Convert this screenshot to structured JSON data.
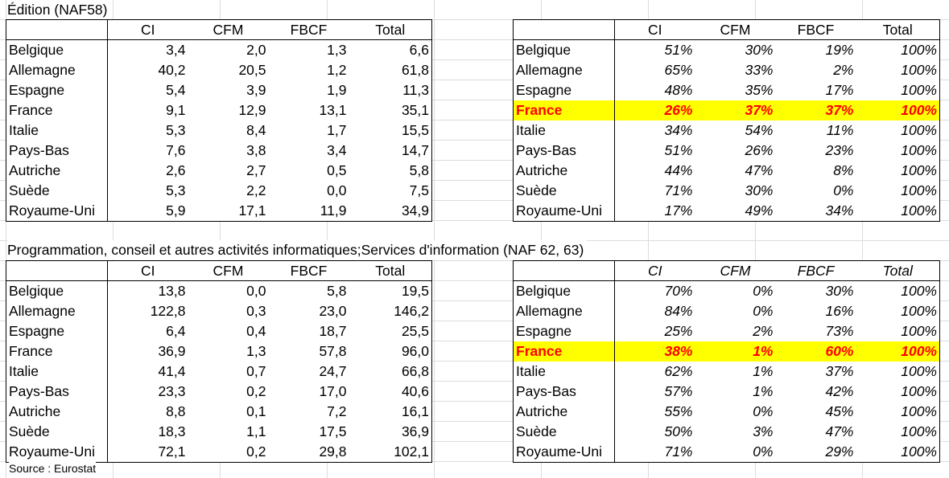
{
  "headers": [
    "CI",
    "CFM",
    "FBCF",
    "Total"
  ],
  "highlight_color": "#ffff00",
  "highlight_text_color": "#ff0000",
  "blocks": [
    {
      "title": "Édition (NAF58)",
      "values": {
        "rows": [
          {
            "name": "Belgique",
            "v": [
              "3,4",
              "2,0",
              "1,3",
              "6,6"
            ]
          },
          {
            "name": "Allemagne",
            "v": [
              "40,2",
              "20,5",
              "1,2",
              "61,8"
            ]
          },
          {
            "name": "Espagne",
            "v": [
              "5,4",
              "3,9",
              "1,9",
              "11,3"
            ]
          },
          {
            "name": "France",
            "v": [
              "9,1",
              "12,9",
              "13,1",
              "35,1"
            ]
          },
          {
            "name": "Italie",
            "v": [
              "5,3",
              "8,4",
              "1,7",
              "15,5"
            ]
          },
          {
            "name": "Pays-Bas",
            "v": [
              "7,6",
              "3,8",
              "3,4",
              "14,7"
            ]
          },
          {
            "name": "Autriche",
            "v": [
              "2,6",
              "2,7",
              "0,5",
              "5,8"
            ]
          },
          {
            "name": "Suède",
            "v": [
              "5,3",
              "2,2",
              "0,0",
              "7,5"
            ]
          },
          {
            "name": "Royaume-Uni",
            "v": [
              "5,9",
              "17,1",
              "11,9",
              "34,9"
            ]
          }
        ]
      },
      "shares": {
        "rows": [
          {
            "name": "Belgique",
            "v": [
              "51%",
              "30%",
              "19%",
              "100%"
            ]
          },
          {
            "name": "Allemagne",
            "v": [
              "65%",
              "33%",
              "2%",
              "100%"
            ]
          },
          {
            "name": "Espagne",
            "v": [
              "48%",
              "35%",
              "17%",
              "100%"
            ]
          },
          {
            "name": "France",
            "v": [
              "26%",
              "37%",
              "37%",
              "100%"
            ]
          },
          {
            "name": "Italie",
            "v": [
              "34%",
              "54%",
              "11%",
              "100%"
            ]
          },
          {
            "name": "Pays-Bas",
            "v": [
              "51%",
              "26%",
              "23%",
              "100%"
            ]
          },
          {
            "name": "Autriche",
            "v": [
              "44%",
              "47%",
              "8%",
              "100%"
            ]
          },
          {
            "name": "Suède",
            "v": [
              "71%",
              "30%",
              "0%",
              "100%"
            ]
          },
          {
            "name": "Royaume-Uni",
            "v": [
              "17%",
              "49%",
              "34%",
              "100%"
            ]
          }
        ]
      }
    },
    {
      "title": "Programmation, conseil et autres activités informatiques;Services d'information (NAF 62, 63)",
      "values": {
        "rows": [
          {
            "name": "Belgique",
            "v": [
              "13,8",
              "0,0",
              "5,8",
              "19,5"
            ]
          },
          {
            "name": "Allemagne",
            "v": [
              "122,8",
              "0,3",
              "23,0",
              "146,2"
            ]
          },
          {
            "name": "Espagne",
            "v": [
              "6,4",
              "0,4",
              "18,7",
              "25,5"
            ]
          },
          {
            "name": "France",
            "v": [
              "36,9",
              "1,3",
              "57,8",
              "96,0"
            ]
          },
          {
            "name": "Italie",
            "v": [
              "41,4",
              "0,7",
              "24,7",
              "66,8"
            ]
          },
          {
            "name": "Pays-Bas",
            "v": [
              "23,3",
              "0,2",
              "17,0",
              "40,6"
            ]
          },
          {
            "name": "Autriche",
            "v": [
              "8,8",
              "0,1",
              "7,2",
              "16,1"
            ]
          },
          {
            "name": "Suède",
            "v": [
              "18,3",
              "1,1",
              "17,5",
              "36,9"
            ]
          },
          {
            "name": "Royaume-Uni",
            "v": [
              "72,1",
              "0,2",
              "29,8",
              "102,1"
            ]
          }
        ]
      },
      "shares": {
        "rows": [
          {
            "name": "Belgique",
            "v": [
              "70%",
              "0%",
              "30%",
              "100%"
            ]
          },
          {
            "name": "Allemagne",
            "v": [
              "84%",
              "0%",
              "16%",
              "100%"
            ]
          },
          {
            "name": "Espagne",
            "v": [
              "25%",
              "2%",
              "73%",
              "100%"
            ]
          },
          {
            "name": "France",
            "v": [
              "38%",
              "1%",
              "60%",
              "100%"
            ]
          },
          {
            "name": "Italie",
            "v": [
              "62%",
              "1%",
              "37%",
              "100%"
            ]
          },
          {
            "name": "Pays-Bas",
            "v": [
              "57%",
              "1%",
              "42%",
              "100%"
            ]
          },
          {
            "name": "Autriche",
            "v": [
              "55%",
              "0%",
              "45%",
              "100%"
            ]
          },
          {
            "name": "Suède",
            "v": [
              "50%",
              "3%",
              "47%",
              "100%"
            ]
          },
          {
            "name": "Royaume-Uni",
            "v": [
              "71%",
              "0%",
              "29%",
              "100%"
            ]
          }
        ]
      }
    }
  ],
  "source": "Source : Eurostat"
}
